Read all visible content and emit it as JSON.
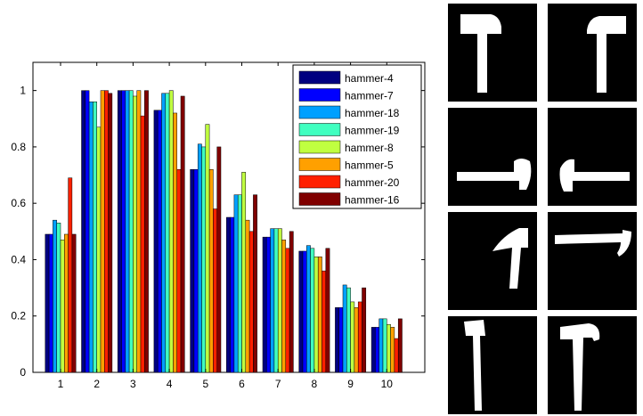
{
  "chart_data": {
    "type": "bar",
    "title": "",
    "xlabel": "",
    "ylabel": "",
    "categories": [
      "1",
      "2",
      "3",
      "4",
      "5",
      "6",
      "7",
      "8",
      "9",
      "10"
    ],
    "ylim": [
      0,
      1.1
    ],
    "yticks": [
      "0",
      "0.2",
      "0.4",
      "0.6",
      "0.8",
      "1"
    ],
    "ytick_values": [
      0,
      0.2,
      0.4,
      0.6,
      0.8,
      1
    ],
    "grid": false,
    "legend_position": "top-right",
    "series": [
      {
        "name": "hammer-4",
        "color": "#000080",
        "values": [
          0.49,
          1.0,
          1.0,
          0.93,
          0.72,
          0.55,
          0.48,
          0.43,
          0.23,
          0.16
        ]
      },
      {
        "name": "hammer-7",
        "color": "#0000ff",
        "values": [
          0.49,
          1.0,
          1.0,
          0.93,
          0.72,
          0.55,
          0.48,
          0.43,
          0.23,
          0.16
        ]
      },
      {
        "name": "hammer-18",
        "color": "#00a0ff",
        "values": [
          0.54,
          0.96,
          1.0,
          0.99,
          0.81,
          0.63,
          0.51,
          0.45,
          0.31,
          0.19
        ]
      },
      {
        "name": "hammer-19",
        "color": "#40ffc0",
        "values": [
          0.53,
          0.96,
          1.0,
          0.99,
          0.8,
          0.63,
          0.51,
          0.44,
          0.3,
          0.19
        ]
      },
      {
        "name": "hammer-8",
        "color": "#c0ff40",
        "values": [
          0.47,
          0.87,
          0.98,
          1.0,
          0.88,
          0.71,
          0.51,
          0.41,
          0.25,
          0.17
        ]
      },
      {
        "name": "hammer-5",
        "color": "#ffa000",
        "values": [
          0.49,
          1.0,
          1.0,
          0.92,
          0.72,
          0.54,
          0.47,
          0.41,
          0.23,
          0.16
        ]
      },
      {
        "name": "hammer-20",
        "color": "#ff2000",
        "values": [
          0.69,
          1.0,
          0.91,
          0.72,
          0.58,
          0.5,
          0.44,
          0.36,
          0.25,
          0.12
        ]
      },
      {
        "name": "hammer-16",
        "color": "#800000",
        "values": [
          0.49,
          0.99,
          1.0,
          0.98,
          0.8,
          0.63,
          0.5,
          0.44,
          0.3,
          0.19
        ]
      }
    ]
  },
  "thumbnails": [
    {
      "icon": "hammer-upright-icon"
    },
    {
      "icon": "hammer-mirrored-icon"
    },
    {
      "icon": "hammer-horizontal-right-icon"
    },
    {
      "icon": "hammer-horizontal-left-icon"
    },
    {
      "icon": "hammer-tilted-icon"
    },
    {
      "icon": "hammer-rotated-icon"
    },
    {
      "icon": "hammer-thin-icon"
    },
    {
      "icon": "hammer-thin-mirrored-icon"
    }
  ]
}
